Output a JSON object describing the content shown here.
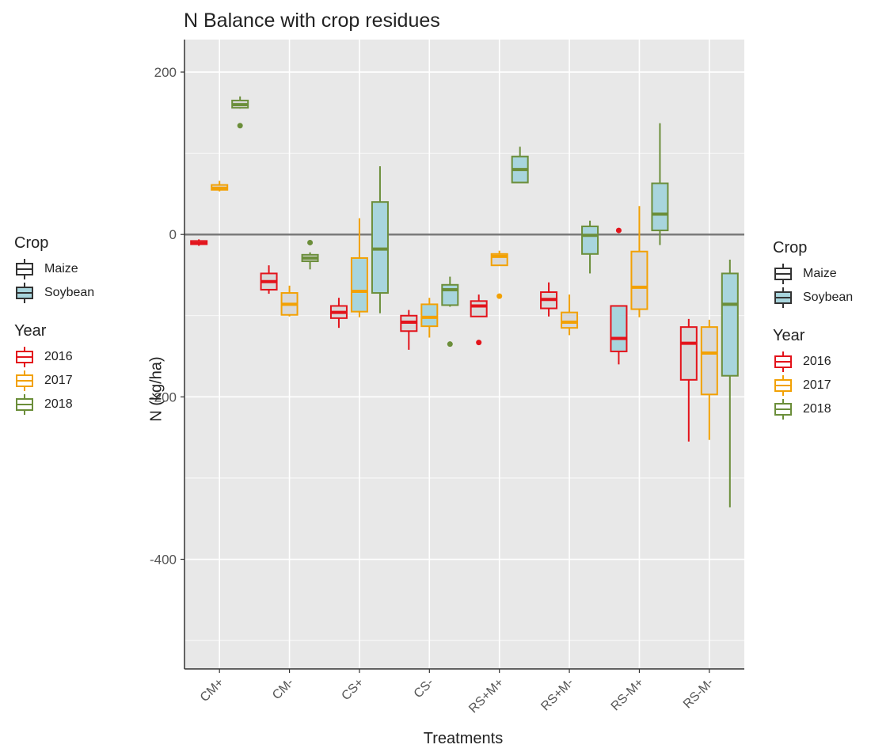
{
  "chart_data": {
    "type": "boxplot",
    "title": "N Balance with crop residues",
    "xlabel": "Treatments",
    "ylabel": "N (kg/ha)",
    "ylim": [
      -535,
      240
    ],
    "yticks": [
      200,
      0,
      -200,
      -400
    ],
    "grid": true,
    "reference_line": 0,
    "categories": [
      "CM+",
      "CM-",
      "CS+",
      "CS-",
      "RS+M+",
      "RS+M-",
      "RS-M+",
      "RS-M-"
    ],
    "years": [
      "2016",
      "2017",
      "2018"
    ],
    "year_colors": {
      "2016": "#e3131b",
      "2017": "#f2a104",
      "2018": "#6b8e3a"
    },
    "crop_fills": {
      "Maize": "#d9d9d9",
      "Soybean": "#a8d5dd"
    },
    "boxes": [
      {
        "category": "CM+",
        "year": "2016",
        "crop": "Maize",
        "min": -14,
        "q1": -12,
        "median": -11,
        "q3": -8,
        "max": -6,
        "outliers": []
      },
      {
        "category": "CM+",
        "year": "2017",
        "crop": "Maize",
        "min": 53,
        "q1": 55,
        "median": 57,
        "q3": 61,
        "max": 66,
        "outliers": []
      },
      {
        "category": "CM+",
        "year": "2018",
        "crop": "Maize",
        "min": 155,
        "q1": 156,
        "median": 160,
        "q3": 165,
        "max": 170,
        "outliers": [
          134
        ]
      },
      {
        "category": "CM-",
        "year": "2016",
        "crop": "Maize",
        "min": -73,
        "q1": -68,
        "median": -58,
        "q3": -48,
        "max": -38,
        "outliers": []
      },
      {
        "category": "CM-",
        "year": "2017",
        "crop": "Maize",
        "min": -101,
        "q1": -99,
        "median": -86,
        "q3": -72,
        "max": -63,
        "outliers": []
      },
      {
        "category": "CM-",
        "year": "2018",
        "crop": "Maize",
        "min": -43,
        "q1": -33,
        "median": -29,
        "q3": -25,
        "max": -22,
        "outliers": [
          -10
        ]
      },
      {
        "category": "CS+",
        "year": "2016",
        "crop": "Maize",
        "min": -115,
        "q1": -103,
        "median": -96,
        "q3": -88,
        "max": -78,
        "outliers": []
      },
      {
        "category": "CS+",
        "year": "2017",
        "crop": "Soybean",
        "min": -102,
        "q1": -95,
        "median": -70,
        "q3": -29,
        "max": 20,
        "outliers": []
      },
      {
        "category": "CS+",
        "year": "2018",
        "crop": "Soybean",
        "min": -97,
        "q1": -72,
        "median": -18,
        "q3": 40,
        "max": 84,
        "outliers": []
      },
      {
        "category": "CS-",
        "year": "2016",
        "crop": "Maize",
        "min": -142,
        "q1": -119,
        "median": -108,
        "q3": -100,
        "max": -93,
        "outliers": []
      },
      {
        "category": "CS-",
        "year": "2017",
        "crop": "Soybean",
        "min": -127,
        "q1": -113,
        "median": -102,
        "q3": -86,
        "max": -78,
        "outliers": []
      },
      {
        "category": "CS-",
        "year": "2018",
        "crop": "Soybean",
        "min": -89,
        "q1": -87,
        "median": -68,
        "q3": -62,
        "max": -52,
        "outliers": [
          -135
        ]
      },
      {
        "category": "RS+M+",
        "year": "2016",
        "crop": "Maize",
        "min": -101,
        "q1": -101,
        "median": -88,
        "q3": -82,
        "max": -74,
        "outliers": [
          -133
        ]
      },
      {
        "category": "RS+M+",
        "year": "2017",
        "crop": "Maize",
        "min": -38,
        "q1": -38,
        "median": -27,
        "q3": -24,
        "max": -20,
        "outliers": [
          -76
        ]
      },
      {
        "category": "RS+M+",
        "year": "2018",
        "crop": "Soybean",
        "min": 64,
        "q1": 64,
        "median": 80,
        "q3": 96,
        "max": 108,
        "outliers": []
      },
      {
        "category": "RS+M-",
        "year": "2016",
        "crop": "Maize",
        "min": -101,
        "q1": -91,
        "median": -80,
        "q3": -71,
        "max": -59,
        "outliers": []
      },
      {
        "category": "RS+M-",
        "year": "2017",
        "crop": "Maize",
        "min": -124,
        "q1": -115,
        "median": -108,
        "q3": -96,
        "max": -74,
        "outliers": []
      },
      {
        "category": "RS+M-",
        "year": "2018",
        "crop": "Soybean",
        "min": -48,
        "q1": -24,
        "median": -1,
        "q3": 10,
        "max": 17,
        "outliers": []
      },
      {
        "category": "RS-M+",
        "year": "2016",
        "crop": "Soybean",
        "min": -160,
        "q1": -144,
        "median": -128,
        "q3": -88,
        "max": -88,
        "outliers": [
          5
        ]
      },
      {
        "category": "RS-M+",
        "year": "2017",
        "crop": "Maize",
        "min": -102,
        "q1": -92,
        "median": -65,
        "q3": -21,
        "max": 35,
        "outliers": []
      },
      {
        "category": "RS-M+",
        "year": "2018",
        "crop": "Soybean",
        "min": -13,
        "q1": 5,
        "median": 25,
        "q3": 63,
        "max": 137,
        "outliers": []
      },
      {
        "category": "RS-M-",
        "year": "2016",
        "crop": "Maize",
        "min": -255,
        "q1": -179,
        "median": -134,
        "q3": -114,
        "max": -104,
        "outliers": []
      },
      {
        "category": "RS-M-",
        "year": "2017",
        "crop": "Maize",
        "min": -253,
        "q1": -197,
        "median": -146,
        "q3": -114,
        "max": -105,
        "outliers": []
      },
      {
        "category": "RS-M-",
        "year": "2018",
        "crop": "Soybean",
        "min": -336,
        "q1": -174,
        "median": -86,
        "q3": -48,
        "max": -31,
        "outliers": []
      }
    ],
    "legends": [
      {
        "title": "Crop",
        "items": [
          "Maize",
          "Soybean"
        ]
      },
      {
        "title": "Year",
        "items": [
          "2016",
          "2017",
          "2018"
        ]
      }
    ]
  }
}
